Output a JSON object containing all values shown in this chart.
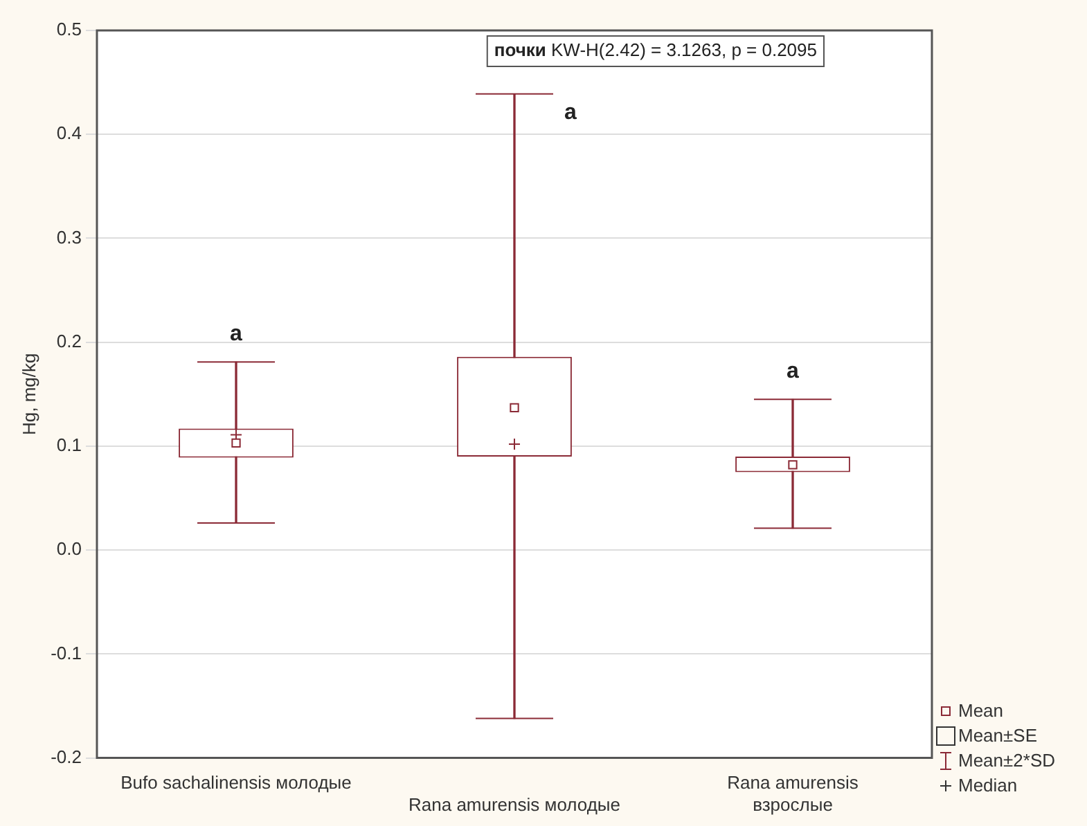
{
  "chart_data": {
    "type": "box",
    "ylabel": "Hg, mg/kg",
    "categories": [
      "Bufo sachalinensis молодые",
      "Rana amurensis молодые",
      "Rana amurensis взрослые"
    ],
    "series": [
      {
        "color": "#8b2a36",
        "boxes": [
          {
            "low": 0.026,
            "q1": 0.089,
            "median": 0.111,
            "q3": 0.117,
            "high": 0.181,
            "mean": 0.103
          },
          {
            "low": -0.162,
            "q1": 0.09,
            "median": 0.102,
            "q3": 0.186,
            "high": 0.439,
            "mean": 0.137
          },
          {
            "low": 0.021,
            "q1": 0.075,
            "q3": 0.09,
            "high": 0.145,
            "mean": 0.082
          }
        ]
      }
    ],
    "ylim": [
      -0.2,
      0.5
    ],
    "yticks": [
      {
        "value": -0.2,
        "label": "-0.2"
      },
      {
        "value": -0.1,
        "label": "-0.1"
      },
      {
        "value": 0,
        "label": "0.0"
      },
      0.1,
      0.2,
      0.3,
      0.4,
      0.5
    ],
    "grid": "y",
    "annotations": [
      "почки KW-H(2.42) = 3.1263, p = 0.2095",
      "a",
      "a",
      "a",
      "Mean",
      "Mean±SE",
      "Mean±2*SD",
      "Median"
    ]
  }
}
